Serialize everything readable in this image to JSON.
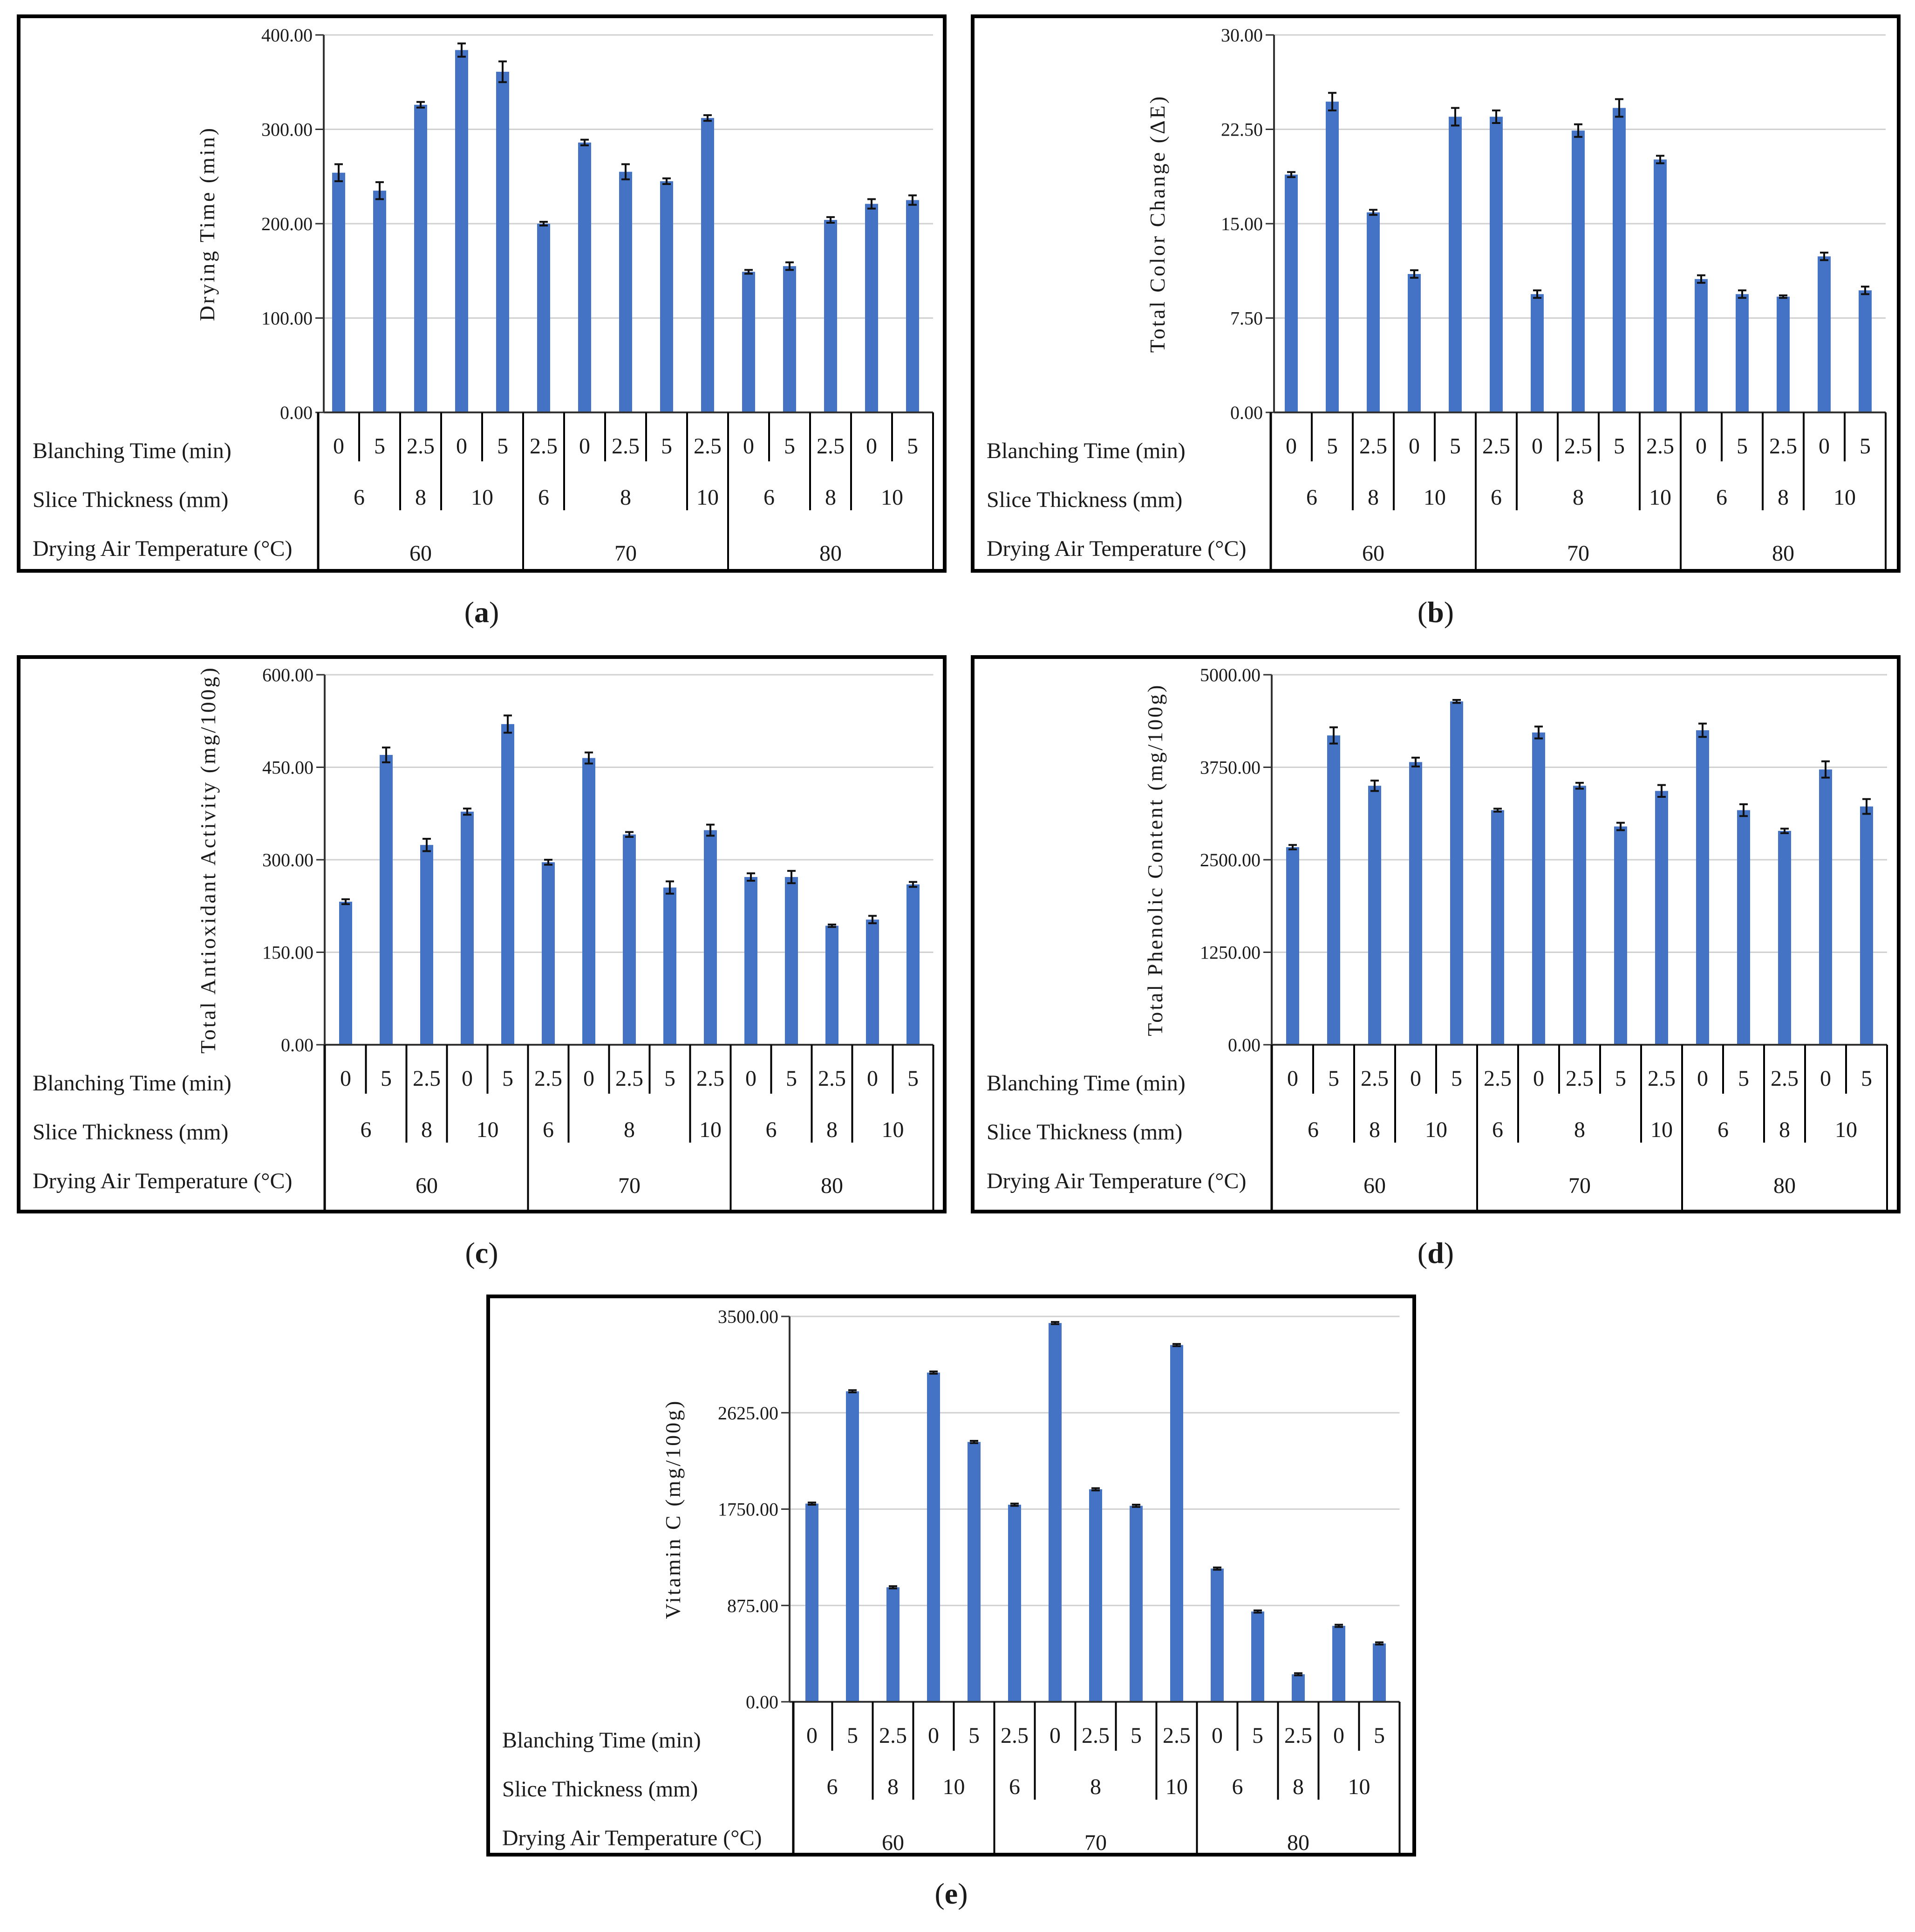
{
  "colors": {
    "bar": "#4472C4",
    "frame": "#000000",
    "grid": "#d0d0d0",
    "error": "#111111"
  },
  "row_labels": [
    "Blanching Time (min)",
    "Slice Thickness (mm)",
    "Drying Air Temperature (°C)"
  ],
  "blanching_times": [
    "0",
    "5",
    "2.5",
    "0",
    "5",
    "2.5",
    "0",
    "2.5",
    "5",
    "2.5",
    "0",
    "5",
    "2.5",
    "0",
    "5"
  ],
  "thickness_groups": [
    {
      "label": "6",
      "span": 2
    },
    {
      "label": "8",
      "span": 1
    },
    {
      "label": "10",
      "span": 2
    },
    {
      "label": "6",
      "span": 1
    },
    {
      "label": "8",
      "span": 3
    },
    {
      "label": "10",
      "span": 1
    },
    {
      "label": "6",
      "span": 2
    },
    {
      "label": "8",
      "span": 1
    },
    {
      "label": "10",
      "span": 2
    }
  ],
  "temperature_groups": [
    {
      "label": "60",
      "span": 5
    },
    {
      "label": "70",
      "span": 5
    },
    {
      "label": "80",
      "span": 5
    }
  ],
  "chart_data": [
    {
      "panel": "(a)",
      "type": "bar",
      "ylabel": "Drying Time (min)",
      "ylim": [
        0,
        400
      ],
      "yticks": [
        "0.00",
        "100.00",
        "200.00",
        "300.00",
        "400.00"
      ],
      "values": [
        254,
        235,
        326,
        384,
        361,
        200,
        286,
        255,
        245,
        312,
        149,
        155,
        204,
        221,
        225
      ],
      "errors": [
        9,
        9,
        3,
        7,
        11,
        2,
        3,
        8,
        3,
        3,
        2,
        4,
        3,
        5,
        5
      ]
    },
    {
      "panel": "(b)",
      "type": "bar",
      "ylabel": "Total Color Change (ΔE)",
      "ylim": [
        0,
        30
      ],
      "yticks": [
        "0.00",
        "7.50",
        "15.00",
        "22.50",
        "30.00"
      ],
      "values": [
        18.9,
        24.7,
        15.9,
        11.0,
        23.5,
        23.5,
        9.4,
        22.4,
        24.2,
        20.1,
        10.6,
        9.4,
        9.2,
        12.4,
        9.7
      ],
      "errors": [
        0.2,
        0.7,
        0.2,
        0.3,
        0.7,
        0.5,
        0.3,
        0.5,
        0.7,
        0.3,
        0.3,
        0.3,
        0.1,
        0.3,
        0.3
      ]
    },
    {
      "panel": "(c)",
      "type": "bar",
      "ylabel": "Total Antioxidant Activity (mg/100g)",
      "ylim": [
        0,
        600
      ],
      "yticks": [
        "0.00",
        "150.00",
        "300.00",
        "450.00",
        "600.00"
      ],
      "values": [
        232,
        470,
        324,
        378,
        520,
        296,
        465,
        341,
        255,
        348,
        272,
        272,
        193,
        203,
        260
      ],
      "errors": [
        4,
        12,
        10,
        5,
        14,
        4,
        9,
        4,
        10,
        9,
        6,
        10,
        2,
        6,
        4
      ]
    },
    {
      "panel": "(d)",
      "type": "bar",
      "ylabel": "Total Phenolic Content (mg/100g)",
      "ylim": [
        0,
        5000
      ],
      "yticks": [
        "0.00",
        "1250.00",
        "2500.00",
        "3750.00",
        "5000.00"
      ],
      "values": [
        2670,
        4180,
        3500,
        3820,
        4640,
        3170,
        4220,
        3500,
        2950,
        3430,
        4250,
        3170,
        2890,
        3720,
        3220
      ],
      "errors": [
        30,
        110,
        70,
        60,
        20,
        20,
        80,
        40,
        50,
        80,
        90,
        80,
        30,
        110,
        100
      ]
    },
    {
      "panel": "(e)",
      "type": "bar",
      "ylabel": "Vitamin C (mg/100g)",
      "ylim": [
        0,
        3500
      ],
      "yticks": [
        "0.00",
        "875.00",
        "1750.00",
        "2625.00",
        "3500.00"
      ],
      "values": [
        1800,
        2820,
        1040,
        2990,
        2360,
        1790,
        3440,
        1930,
        1780,
        3240,
        1210,
        820,
        250,
        690,
        530
      ],
      "errors": [
        10,
        10,
        10,
        10,
        10,
        10,
        10,
        10,
        10,
        10,
        10,
        10,
        10,
        10,
        10
      ]
    }
  ]
}
